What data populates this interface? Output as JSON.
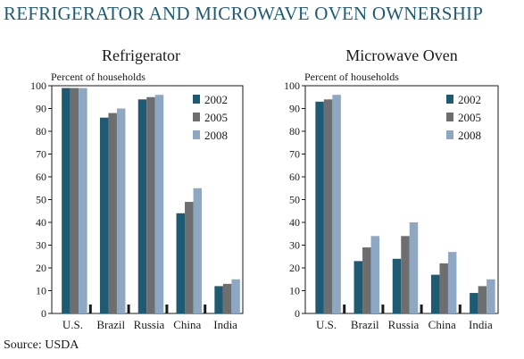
{
  "title": "REFRIGERATOR AND MICROWAVE OVEN OWNERSHIP",
  "source": "Source: USDA",
  "colors": {
    "2002": "#1e5a72",
    "2005": "#6d6e70",
    "2008": "#8ea8c4",
    "title": "#1f5c73"
  },
  "chart_data": [
    {
      "type": "bar",
      "title": "Refrigerator",
      "ylabel": "Percent of households",
      "ylim": [
        0,
        100
      ],
      "yticks": [
        0,
        10,
        20,
        30,
        40,
        50,
        60,
        70,
        80,
        90,
        100
      ],
      "categories": [
        "U.S.",
        "Brazil",
        "Russia",
        "China",
        "India"
      ],
      "series": [
        {
          "name": "2002",
          "values": [
            99,
            86,
            94,
            44,
            12
          ]
        },
        {
          "name": "2005",
          "values": [
            99,
            88,
            95,
            49,
            13
          ]
        },
        {
          "name": "2008",
          "values": [
            99,
            90,
            96,
            55,
            15
          ]
        }
      ],
      "legend": "top-right"
    },
    {
      "type": "bar",
      "title": "Microwave Oven",
      "ylabel": "Percent of households",
      "ylim": [
        0,
        100
      ],
      "yticks": [
        0,
        10,
        20,
        30,
        40,
        50,
        60,
        70,
        80,
        90,
        100
      ],
      "categories": [
        "U.S.",
        "Brazil",
        "Russia",
        "China",
        "India"
      ],
      "series": [
        {
          "name": "2002",
          "values": [
            93,
            23,
            24,
            17,
            9
          ]
        },
        {
          "name": "2005",
          "values": [
            94,
            29,
            34,
            22,
            12
          ]
        },
        {
          "name": "2008",
          "values": [
            96,
            34,
            40,
            27,
            15
          ]
        }
      ],
      "legend": "top-right"
    }
  ]
}
